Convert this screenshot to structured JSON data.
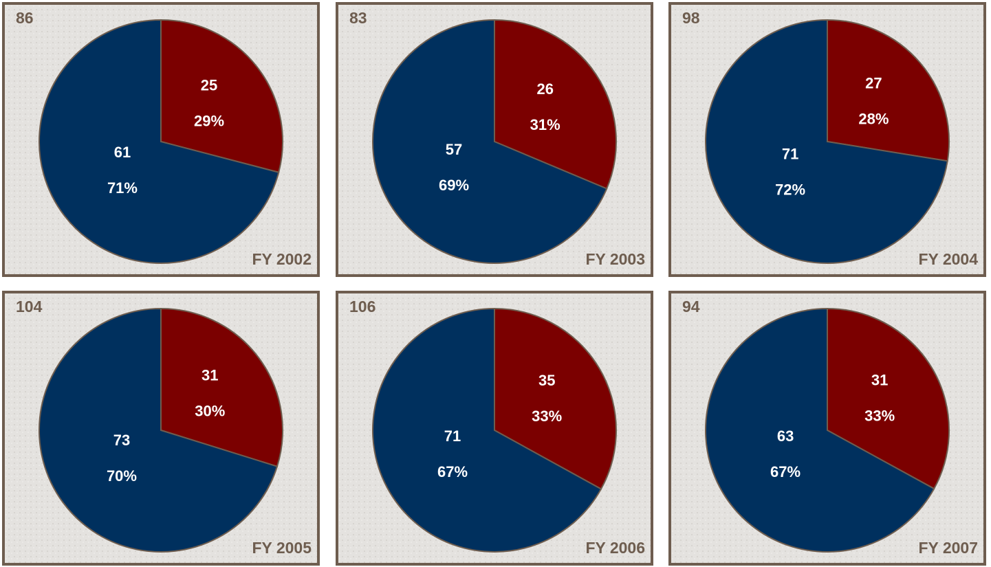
{
  "chart_data": [
    {
      "type": "pie",
      "title": "FY 2002",
      "total": 86,
      "values": [
        25,
        61
      ],
      "shares": [
        29,
        71
      ],
      "share_labels": [
        "29%",
        "71%"
      ],
      "colors": [
        "#7b0000",
        "#00305e"
      ]
    },
    {
      "type": "pie",
      "title": "FY 2003",
      "total": 83,
      "values": [
        26,
        57
      ],
      "shares": [
        31,
        69
      ],
      "share_labels": [
        "31%",
        "69%"
      ],
      "colors": [
        "#7b0000",
        "#00305e"
      ]
    },
    {
      "type": "pie",
      "title": "FY 2004",
      "total": 98,
      "values": [
        27,
        71
      ],
      "shares": [
        28,
        72
      ],
      "share_labels": [
        "28%",
        "72%"
      ],
      "colors": [
        "#7b0000",
        "#00305e"
      ]
    },
    {
      "type": "pie",
      "title": "FY 2005",
      "total": 104,
      "values": [
        31,
        73
      ],
      "shares": [
        30,
        70
      ],
      "share_labels": [
        "30%",
        "70%"
      ],
      "colors": [
        "#7b0000",
        "#00305e"
      ]
    },
    {
      "type": "pie",
      "title": "FY 2006",
      "total": 106,
      "values": [
        35,
        71
      ],
      "shares": [
        33,
        67
      ],
      "share_labels": [
        "33%",
        "67%"
      ],
      "colors": [
        "#7b0000",
        "#00305e"
      ]
    },
    {
      "type": "pie",
      "title": "FY 2007",
      "total": 94,
      "values": [
        31,
        63
      ],
      "shares": [
        33,
        67
      ],
      "share_labels": [
        "33%",
        "67%"
      ],
      "colors": [
        "#7b0000",
        "#00305e"
      ]
    }
  ]
}
